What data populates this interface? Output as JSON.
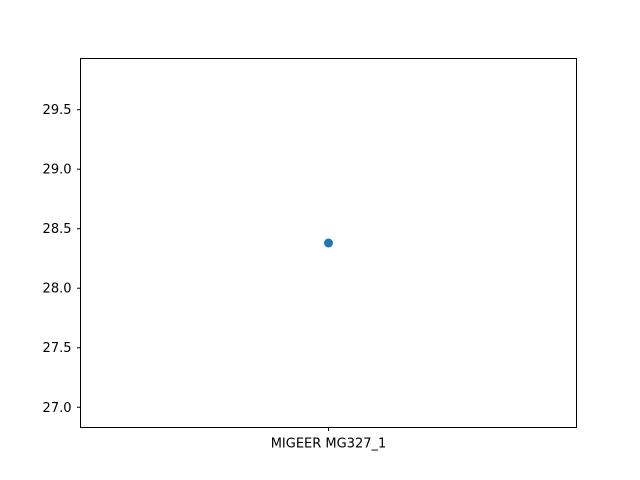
{
  "chart_data": {
    "type": "scatter",
    "categories": [
      "MIGEER MG327_1"
    ],
    "series": [
      {
        "values": [
          28.38
        ]
      }
    ],
    "y_ticks": [
      27.0,
      27.5,
      28.0,
      28.5,
      29.0,
      29.5
    ],
    "y_tick_labels": [
      "27.0",
      "27.5",
      "28.0",
      "28.5",
      "29.0",
      "29.5"
    ],
    "ylim": [
      26.83,
      29.93
    ],
    "xlim": [
      -0.055,
      0.055
    ],
    "grid": false,
    "title": "",
    "xlabel": "",
    "ylabel": "",
    "colors": {
      "marker": "#1f77b4",
      "axes": "#000000",
      "background": "#ffffff"
    }
  }
}
